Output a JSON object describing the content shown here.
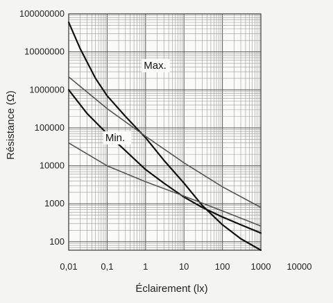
{
  "chart_data": {
    "type": "line",
    "xlabel": "Éclairement (lx)",
    "ylabel": "Résistance (Ω)",
    "x_scale": "log",
    "y_scale": "log",
    "xlim": [
      0.01,
      10000
    ],
    "ylim": [
      60,
      100000000
    ],
    "grid": true,
    "x_ticks": [
      {
        "value": 0.01,
        "label": "0,01"
      },
      {
        "value": 0.1,
        "label": "0,1"
      },
      {
        "value": 1,
        "label": "1"
      },
      {
        "value": 10,
        "label": "10"
      },
      {
        "value": 100,
        "label": "100"
      },
      {
        "value": 1000,
        "label": "1000"
      },
      {
        "value": 10000,
        "label": "10000"
      }
    ],
    "y_ticks": [
      {
        "value": 100,
        "label": "100"
      },
      {
        "value": 1000,
        "label": "1000"
      },
      {
        "value": 10000,
        "label": "10000"
      },
      {
        "value": 100000,
        "label": "100000"
      },
      {
        "value": 1000000,
        "label": "1000000"
      },
      {
        "value": 10000000,
        "label": "10000000"
      },
      {
        "value": 100000000,
        "label": "100000000"
      }
    ],
    "annotations": [
      {
        "text": "Max.",
        "x": 0.9,
        "y": 3600000
      },
      {
        "text": "Min.",
        "x": 0.09,
        "y": 45000
      }
    ],
    "series": [
      {
        "color": "#111111",
        "width": 2.2,
        "points": [
          [
            0.01,
            60000000
          ],
          [
            0.02,
            12000000
          ],
          [
            0.05,
            2000000
          ],
          [
            0.1,
            700000
          ],
          [
            0.3,
            200000
          ],
          [
            1,
            55000
          ],
          [
            3,
            14000
          ],
          [
            10,
            3500
          ],
          [
            30,
            900
          ],
          [
            100,
            280
          ],
          [
            300,
            120
          ],
          [
            1000,
            60
          ]
        ]
      },
      {
        "color": "#111111",
        "width": 2.2,
        "points": [
          [
            0.01,
            1000000
          ],
          [
            0.03,
            240000
          ],
          [
            0.1,
            70000
          ],
          [
            0.3,
            25000
          ],
          [
            1,
            8000
          ],
          [
            3,
            3500
          ],
          [
            10,
            1500
          ],
          [
            30,
            800
          ],
          [
            100,
            450
          ],
          [
            300,
            280
          ],
          [
            1000,
            170
          ]
        ]
      },
      {
        "color": "#555555",
        "width": 1.6,
        "points": [
          [
            0.01,
            2200000
          ],
          [
            0.1,
            320000
          ],
          [
            1,
            60000
          ],
          [
            10,
            12000
          ],
          [
            100,
            2800
          ],
          [
            1000,
            800
          ]
        ]
      },
      {
        "color": "#555555",
        "width": 1.6,
        "points": [
          [
            0.01,
            40000
          ],
          [
            0.1,
            10000
          ],
          [
            1,
            3800
          ],
          [
            10,
            1600
          ],
          [
            100,
            650
          ],
          [
            1000,
            260
          ]
        ]
      }
    ]
  }
}
